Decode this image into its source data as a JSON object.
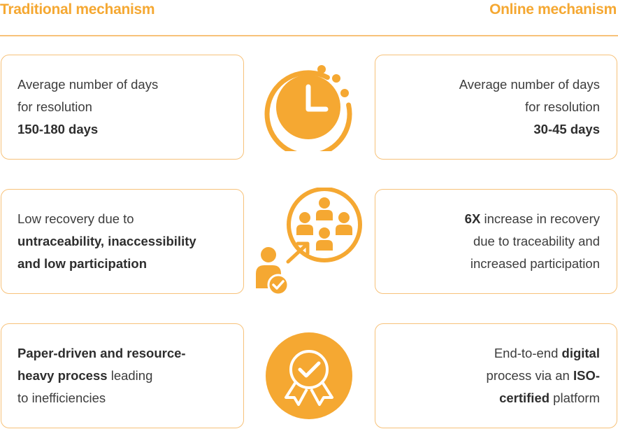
{
  "header": {
    "left_title": "Traditional mechanism",
    "right_title": "Online mechanism"
  },
  "colors": {
    "accent": "#f5a832",
    "border": "#f7c27a",
    "text": "#3d3d3d"
  },
  "rows": [
    {
      "icon": "clock-icon",
      "left": {
        "line1": "Average number of days",
        "line2": "for resolution",
        "line3_bold": "150-180 days"
      },
      "right": {
        "line1": "Average number of days",
        "line2": "for resolution",
        "line3_bold": "30-45 days"
      }
    },
    {
      "icon": "people-recovery-icon",
      "left": {
        "line1": "Low recovery due to",
        "line2_bold": "untraceability, inaccessibility",
        "line3_bold": "and low participation"
      },
      "right": {
        "line1_bold": "6X",
        "line1_rest": " increase in recovery",
        "line2": "due to traceability and",
        "line3": "increased participation"
      }
    },
    {
      "icon": "certified-badge-icon",
      "left": {
        "line1_bold": "Paper-driven and resource-",
        "line2_bold": "heavy process",
        "line2_rest": " leading",
        "line3": "to inefficiencies"
      },
      "right": {
        "line1_pre": "End-to-end ",
        "line1_bold": "digital",
        "line2_pre": "process via an ",
        "line2_bold": "ISO-",
        "line3_bold": "certified",
        "line3_rest": " platform"
      }
    }
  ]
}
